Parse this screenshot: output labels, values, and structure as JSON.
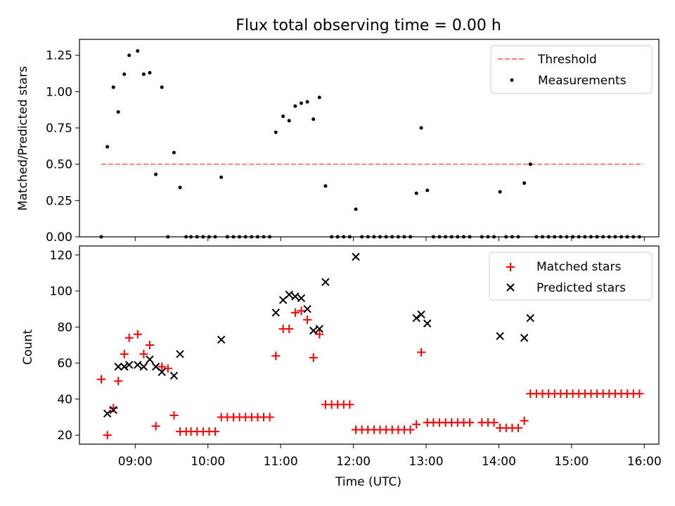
{
  "chart_data": [
    {
      "type": "scatter",
      "title": "Flux total observing time = 0.00 h",
      "xlabel": "",
      "ylabel": "Matched/Predicted stars",
      "xlim": [
        "08:14",
        "16:12"
      ],
      "ylim": [
        0,
        1.36
      ],
      "yticks": [
        0.0,
        0.25,
        0.5,
        0.75,
        1.0,
        1.25
      ],
      "ytick_labels": [
        "0.00",
        "0.25",
        "0.50",
        "0.75",
        "1.00",
        "1.25"
      ],
      "legend": {
        "position": "top-right",
        "entries": [
          "Threshold",
          "Measurements"
        ]
      },
      "threshold": {
        "name": "Threshold",
        "value": 0.5,
        "x": [
          "08:32",
          "15:59"
        ],
        "color": "#ff7f7f"
      },
      "series": [
        {
          "name": "Measurements",
          "color": "#000000",
          "points": [
            [
              "08:32",
              0.0
            ],
            [
              "08:37",
              0.62
            ],
            [
              "08:42",
              1.03
            ],
            [
              "08:46",
              0.86
            ],
            [
              "08:51",
              1.12
            ],
            [
              "08:55",
              1.25
            ],
            [
              "09:02",
              1.28
            ],
            [
              "09:07",
              1.12
            ],
            [
              "09:12",
              1.13
            ],
            [
              "09:17",
              0.43
            ],
            [
              "09:22",
              1.03
            ],
            [
              "09:27",
              0.0
            ],
            [
              "09:32",
              0.58
            ],
            [
              "09:37",
              0.34
            ],
            [
              "09:42",
              0.0
            ],
            [
              "09:46",
              0.0
            ],
            [
              "09:51",
              0.0
            ],
            [
              "09:56",
              0.0
            ],
            [
              "10:01",
              0.0
            ],
            [
              "10:06",
              0.0
            ],
            [
              "10:11",
              0.41
            ],
            [
              "10:16",
              0.0
            ],
            [
              "10:21",
              0.0
            ],
            [
              "10:26",
              0.0
            ],
            [
              "10:31",
              0.0
            ],
            [
              "10:36",
              0.0
            ],
            [
              "10:41",
              0.0
            ],
            [
              "10:46",
              0.0
            ],
            [
              "10:51",
              0.0
            ],
            [
              "10:56",
              0.72
            ],
            [
              "11:02",
              0.83
            ],
            [
              "11:07",
              0.8
            ],
            [
              "11:12",
              0.9
            ],
            [
              "11:17",
              0.92
            ],
            [
              "11:22",
              0.93
            ],
            [
              "11:27",
              0.81
            ],
            [
              "11:32",
              0.96
            ],
            [
              "11:37",
              0.35
            ],
            [
              "11:42",
              0.0
            ],
            [
              "11:47",
              0.0
            ],
            [
              "11:52",
              0.0
            ],
            [
              "11:57",
              0.0
            ],
            [
              "12:02",
              0.19
            ],
            [
              "12:07",
              0.0
            ],
            [
              "12:12",
              0.0
            ],
            [
              "12:17",
              0.0
            ],
            [
              "12:22",
              0.0
            ],
            [
              "12:27",
              0.0
            ],
            [
              "12:32",
              0.0
            ],
            [
              "12:37",
              0.0
            ],
            [
              "12:42",
              0.0
            ],
            [
              "12:47",
              0.0
            ],
            [
              "12:52",
              0.3
            ],
            [
              "12:56",
              0.75
            ],
            [
              "13:01",
              0.32
            ],
            [
              "13:06",
              0.0
            ],
            [
              "13:11",
              0.0
            ],
            [
              "13:16",
              0.0
            ],
            [
              "13:21",
              0.0
            ],
            [
              "13:26",
              0.0
            ],
            [
              "13:31",
              0.0
            ],
            [
              "13:36",
              0.0
            ],
            [
              "13:46",
              0.0
            ],
            [
              "13:51",
              0.0
            ],
            [
              "13:56",
              0.0
            ],
            [
              "14:01",
              0.31
            ],
            [
              "14:06",
              0.0
            ],
            [
              "14:11",
              0.0
            ],
            [
              "14:16",
              0.0
            ],
            [
              "14:21",
              0.37
            ],
            [
              "14:26",
              0.5
            ],
            [
              "14:31",
              0.0
            ],
            [
              "14:36",
              0.0
            ],
            [
              "14:41",
              0.0
            ],
            [
              "14:46",
              0.0
            ],
            [
              "14:51",
              0.0
            ],
            [
              "14:56",
              0.0
            ],
            [
              "15:01",
              0.0
            ],
            [
              "15:06",
              0.0
            ],
            [
              "15:11",
              0.0
            ],
            [
              "15:16",
              0.0
            ],
            [
              "15:21",
              0.0
            ],
            [
              "15:26",
              0.0
            ],
            [
              "15:31",
              0.0
            ],
            [
              "15:36",
              0.0
            ],
            [
              "15:41",
              0.0
            ],
            [
              "15:46",
              0.0
            ],
            [
              "15:51",
              0.0
            ],
            [
              "15:56",
              0.0
            ]
          ]
        }
      ]
    },
    {
      "type": "scatter",
      "title": "",
      "xlabel": "Time (UTC)",
      "ylabel": "Count",
      "xlim": [
        "08:14",
        "16:12"
      ],
      "ylim": [
        15,
        125
      ],
      "xticks": [
        "09:00",
        "10:00",
        "11:00",
        "12:00",
        "13:00",
        "14:00",
        "15:00",
        "16:00"
      ],
      "yticks": [
        20,
        40,
        60,
        80,
        100,
        120
      ],
      "ytick_labels": [
        "20",
        "40",
        "60",
        "80",
        "100",
        "120"
      ],
      "legend": {
        "position": "top-right",
        "entries": [
          "Matched stars",
          "Predicted stars"
        ]
      },
      "series": [
        {
          "name": "Matched stars",
          "marker": "+",
          "color": "#ff0000",
          "points": [
            [
              "08:32",
              51
            ],
            [
              "08:37",
              20
            ],
            [
              "08:42",
              35
            ],
            [
              "08:46",
              50
            ],
            [
              "08:51",
              65
            ],
            [
              "08:55",
              74
            ],
            [
              "09:02",
              76
            ],
            [
              "09:07",
              65
            ],
            [
              "09:12",
              70
            ],
            [
              "09:17",
              25
            ],
            [
              "09:22",
              58
            ],
            [
              "09:27",
              57
            ],
            [
              "09:32",
              31
            ],
            [
              "09:37",
              22
            ],
            [
              "09:42",
              22
            ],
            [
              "09:46",
              22
            ],
            [
              "09:51",
              22
            ],
            [
              "09:56",
              22
            ],
            [
              "10:01",
              22
            ],
            [
              "10:06",
              22
            ],
            [
              "10:11",
              30
            ],
            [
              "10:16",
              30
            ],
            [
              "10:21",
              30
            ],
            [
              "10:26",
              30
            ],
            [
              "10:31",
              30
            ],
            [
              "10:36",
              30
            ],
            [
              "10:41",
              30
            ],
            [
              "10:46",
              30
            ],
            [
              "10:51",
              30
            ],
            [
              "10:56",
              64
            ],
            [
              "11:02",
              79
            ],
            [
              "11:07",
              79
            ],
            [
              "11:12",
              88
            ],
            [
              "11:17",
              89
            ],
            [
              "11:22",
              84
            ],
            [
              "11:27",
              63
            ],
            [
              "11:32",
              76
            ],
            [
              "11:37",
              37
            ],
            [
              "11:42",
              37
            ],
            [
              "11:47",
              37
            ],
            [
              "11:52",
              37
            ],
            [
              "11:57",
              37
            ],
            [
              "12:02",
              23
            ],
            [
              "12:07",
              23
            ],
            [
              "12:12",
              23
            ],
            [
              "12:17",
              23
            ],
            [
              "12:22",
              23
            ],
            [
              "12:27",
              23
            ],
            [
              "12:32",
              23
            ],
            [
              "12:37",
              23
            ],
            [
              "12:42",
              23
            ],
            [
              "12:47",
              23
            ],
            [
              "12:52",
              26
            ],
            [
              "12:56",
              66
            ],
            [
              "13:01",
              27
            ],
            [
              "13:06",
              27
            ],
            [
              "13:11",
              27
            ],
            [
              "13:16",
              27
            ],
            [
              "13:21",
              27
            ],
            [
              "13:26",
              27
            ],
            [
              "13:31",
              27
            ],
            [
              "13:36",
              27
            ],
            [
              "13:46",
              27
            ],
            [
              "13:51",
              27
            ],
            [
              "13:56",
              27
            ],
            [
              "14:01",
              24
            ],
            [
              "14:06",
              24
            ],
            [
              "14:11",
              24
            ],
            [
              "14:16",
              24
            ],
            [
              "14:21",
              28
            ],
            [
              "14:26",
              43
            ],
            [
              "14:31",
              43
            ],
            [
              "14:36",
              43
            ],
            [
              "14:41",
              43
            ],
            [
              "14:46",
              43
            ],
            [
              "14:51",
              43
            ],
            [
              "14:56",
              43
            ],
            [
              "15:01",
              43
            ],
            [
              "15:06",
              43
            ],
            [
              "15:11",
              43
            ],
            [
              "15:16",
              43
            ],
            [
              "15:21",
              43
            ],
            [
              "15:26",
              43
            ],
            [
              "15:31",
              43
            ],
            [
              "15:36",
              43
            ],
            [
              "15:41",
              43
            ],
            [
              "15:46",
              43
            ],
            [
              "15:51",
              43
            ],
            [
              "15:56",
              43
            ]
          ]
        },
        {
          "name": "Predicted stars",
          "marker": "x",
          "color": "#000000",
          "points": [
            [
              "08:37",
              32
            ],
            [
              "08:42",
              34
            ],
            [
              "08:46",
              58
            ],
            [
              "08:51",
              58
            ],
            [
              "08:55",
              59
            ],
            [
              "09:02",
              59
            ],
            [
              "09:07",
              58
            ],
            [
              "09:12",
              62
            ],
            [
              "09:17",
              58
            ],
            [
              "09:22",
              55
            ],
            [
              "09:32",
              53
            ],
            [
              "09:37",
              65
            ],
            [
              "10:11",
              73
            ],
            [
              "10:56",
              88
            ],
            [
              "11:02",
              95
            ],
            [
              "11:07",
              98
            ],
            [
              "11:12",
              97
            ],
            [
              "11:17",
              96
            ],
            [
              "11:22",
              90
            ],
            [
              "11:27",
              78
            ],
            [
              "11:32",
              79
            ],
            [
              "11:37",
              105
            ],
            [
              "12:02",
              119
            ],
            [
              "12:52",
              85
            ],
            [
              "12:56",
              87
            ],
            [
              "13:01",
              82
            ],
            [
              "14:01",
              75
            ],
            [
              "14:21",
              74
            ],
            [
              "14:26",
              85
            ]
          ]
        }
      ]
    }
  ]
}
